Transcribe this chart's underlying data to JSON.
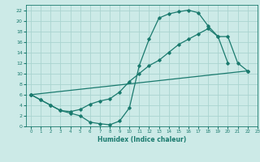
{
  "xlabel": "Humidex (Indice chaleur)",
  "bg_color": "#cceae7",
  "grid_color": "#aad4d0",
  "line_color": "#1a7a6e",
  "xlim": [
    -0.5,
    23
  ],
  "ylim": [
    0,
    23
  ],
  "xticks": [
    0,
    1,
    2,
    3,
    4,
    5,
    6,
    7,
    8,
    9,
    10,
    11,
    12,
    13,
    14,
    15,
    16,
    17,
    18,
    19,
    20,
    21,
    22,
    23
  ],
  "yticks": [
    0,
    2,
    4,
    6,
    8,
    10,
    12,
    14,
    16,
    18,
    20,
    22
  ],
  "line1_x": [
    0,
    1,
    2,
    3,
    4,
    5,
    6,
    7,
    8,
    9,
    10,
    11,
    12,
    13,
    14,
    15,
    16,
    17,
    18,
    19,
    20
  ],
  "line1_y": [
    6,
    5,
    4,
    3,
    2.5,
    2,
    0.8,
    0.5,
    0.3,
    1,
    3.5,
    11.5,
    16.5,
    20.5,
    21.3,
    21.7,
    22,
    21.5,
    19,
    17,
    12
  ],
  "line2_x": [
    0,
    1,
    2,
    3,
    4,
    5,
    6,
    7,
    8,
    9,
    10,
    11,
    12,
    13,
    14,
    15,
    16,
    17,
    18,
    19,
    20,
    21,
    22
  ],
  "line2_y": [
    6,
    5,
    4,
    3,
    2.8,
    3.2,
    4.2,
    4.8,
    5.2,
    6.5,
    8.5,
    10,
    11.5,
    12.5,
    14,
    15.5,
    16.5,
    17.5,
    18.5,
    17,
    17,
    12,
    10.5
  ],
  "line3_x": [
    0,
    22
  ],
  "line3_y": [
    6,
    10.5
  ]
}
